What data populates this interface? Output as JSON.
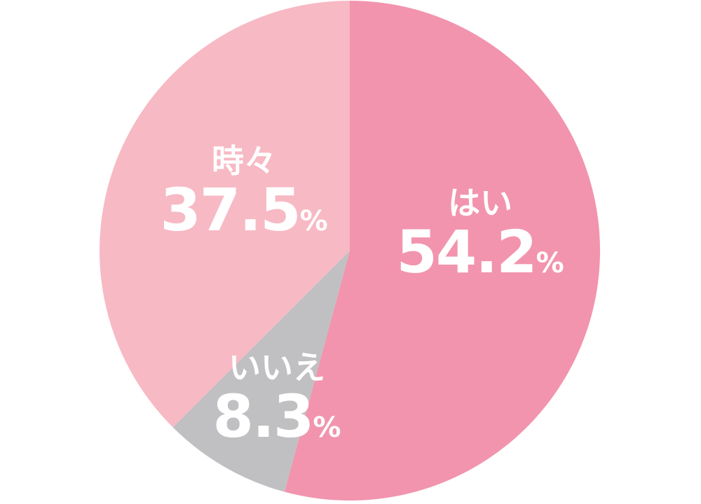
{
  "chart_data": {
    "type": "pie",
    "title": "",
    "start_angle": "top",
    "direction": "clockwise",
    "slices": [
      {
        "label": "はい",
        "value": 54.2,
        "display": "54.2",
        "unit": "%",
        "color": "#f294ae"
      },
      {
        "label": "いいえ",
        "value": 8.3,
        "display": "8.3",
        "unit": "%",
        "color": "#c0c0c2"
      },
      {
        "label": "時々",
        "value": 37.5,
        "display": "37.5",
        "unit": "%",
        "color": "#f7b9c4"
      }
    ]
  }
}
